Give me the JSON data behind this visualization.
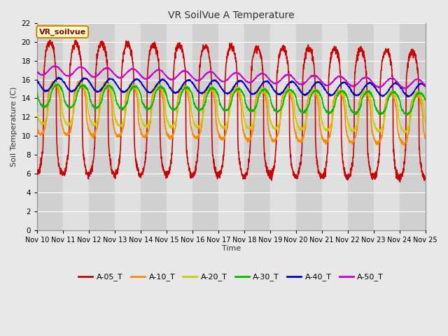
{
  "title": "VR SoilVue A Temperature",
  "ylabel": "Soil Temperature (C)",
  "xlabel": "Time",
  "annotation": "VR_soilvue",
  "ylim": [
    0,
    22
  ],
  "yticks": [
    0,
    2,
    4,
    6,
    8,
    10,
    12,
    14,
    16,
    18,
    20,
    22
  ],
  "xtick_labels": [
    "Nov 10",
    "Nov 11",
    "Nov 12",
    "Nov 13",
    "Nov 14",
    "Nov 15",
    "Nov 16",
    "Nov 17",
    "Nov 18",
    "Nov 19",
    "Nov 20",
    "Nov 21",
    "Nov 22",
    "Nov 23",
    "Nov 24",
    "Nov 25"
  ],
  "series": [
    {
      "name": "A-05_T",
      "color": "#cc0000",
      "lw": 1.2
    },
    {
      "name": "A-10_T",
      "color": "#ff8800",
      "lw": 1.2
    },
    {
      "name": "A-20_T",
      "color": "#cccc00",
      "lw": 1.2
    },
    {
      "name": "A-30_T",
      "color": "#00bb00",
      "lw": 1.2
    },
    {
      "name": "A-40_T",
      "color": "#0000cc",
      "lw": 1.2
    },
    {
      "name": "A-50_T",
      "color": "#cc00cc",
      "lw": 1.2
    }
  ],
  "bg_color": "#e8e8e8",
  "plot_bg_light": "#dcdcdc",
  "plot_bg_dark": "#c8c8c8",
  "grid_color": "#b8b8b8",
  "n_days": 15,
  "points_per_day": 144,
  "figsize": [
    6.4,
    4.8
  ],
  "dpi": 100
}
